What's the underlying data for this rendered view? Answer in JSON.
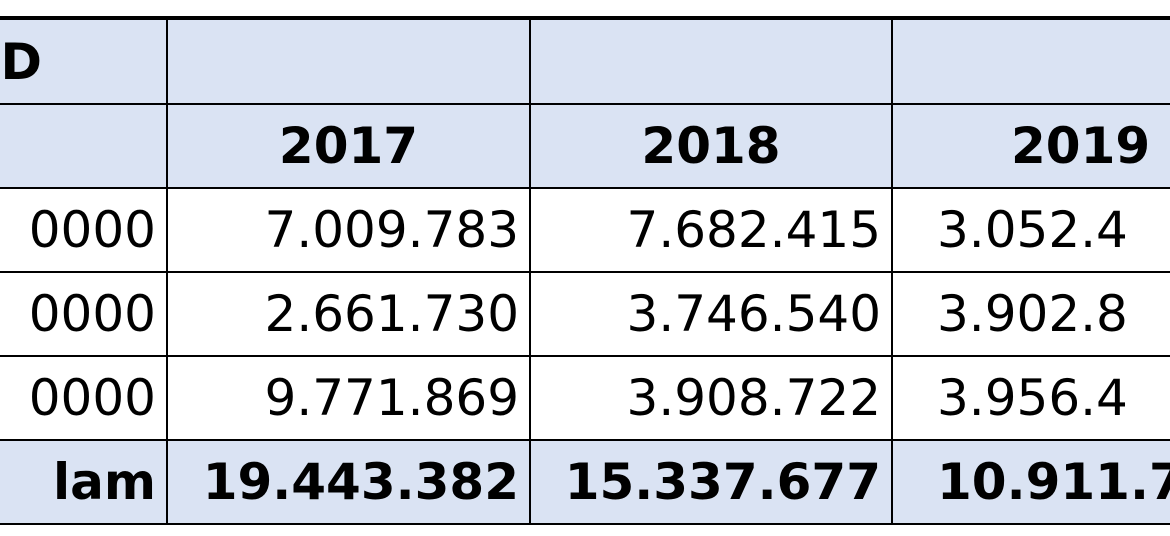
{
  "table": {
    "header_label": "D",
    "years": [
      "2017",
      "2018",
      "2019"
    ],
    "rows": [
      {
        "label": "0000",
        "values": [
          "7.009.783",
          "7.682.415",
          "3.052.4"
        ]
      },
      {
        "label": "0000",
        "values": [
          "2.661.730",
          "3.746.540",
          "3.902.8"
        ]
      },
      {
        "label": "0000",
        "values": [
          "9.771.869",
          "3.908.722",
          "3.956.4"
        ]
      }
    ],
    "total": {
      "label": "lam",
      "values": [
        "19.443.382",
        "15.337.677",
        "10.911.7"
      ]
    }
  },
  "colors": {
    "header_fill": "#dae3f3",
    "border": "#000000"
  }
}
